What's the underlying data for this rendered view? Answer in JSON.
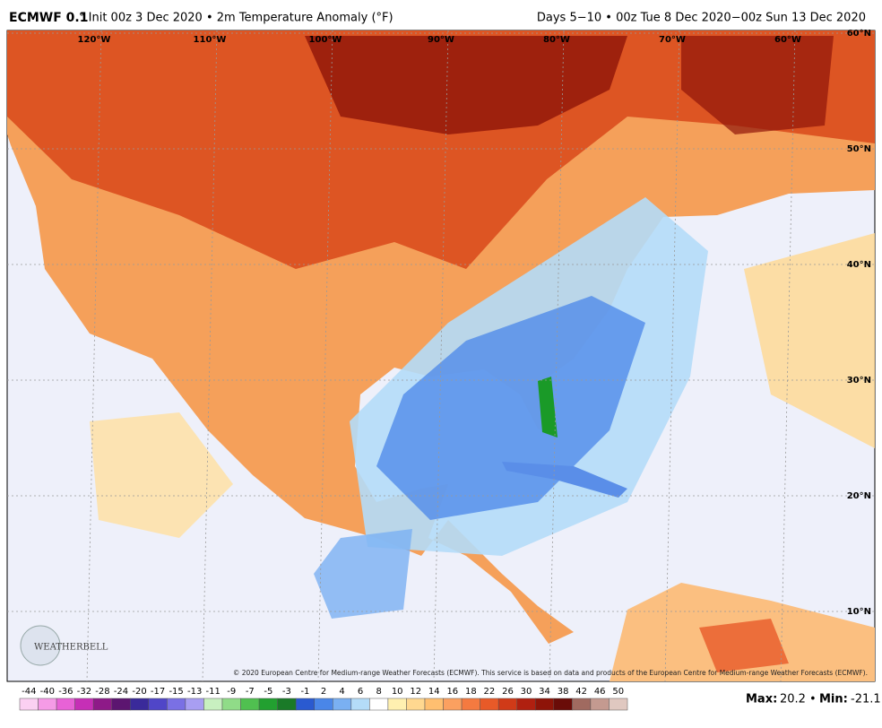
{
  "header": {
    "model": "ECMWF 0.1",
    "title": "° Init 00z 3 Dec 2020 • 2m Temperature Anomaly (°F)",
    "valid": "Days 5−10 • 00z Tue 8 Dec 2020−00z Sun 13 Dec 2020"
  },
  "map": {
    "lon_labels": [
      "120°W",
      "110°W",
      "100°W",
      "90°W",
      "80°W",
      "70°W",
      "60°W"
    ],
    "lat_labels": [
      "60°N",
      "50°N",
      "40°N",
      "30°N",
      "20°N",
      "10°N"
    ],
    "copyright": "© 2020 European Centre for Medium-range Weather Forecasts (ECMWF). This service is based on data and products of the European Centre for Medium-range Weather Forecasts (ECMWF).",
    "logo": "WEATHERBELL"
  },
  "colorbar": {
    "labels": [
      -44,
      -40,
      -36,
      -32,
      -28,
      -24,
      -20,
      -17,
      -15,
      -13,
      -11,
      -9,
      -7,
      -5,
      -3,
      -1,
      2,
      4,
      6,
      8,
      10,
      12,
      14,
      16,
      18,
      22,
      26,
      30,
      34,
      38,
      42,
      46,
      50
    ],
    "colors": [
      "#fbd0f2",
      "#f59be6",
      "#e862d6",
      "#c62fb6",
      "#8e1a88",
      "#5c1570",
      "#3a2a9a",
      "#5046c8",
      "#7a70e4",
      "#a89ef2",
      "#c8f0c0",
      "#90dc88",
      "#50c050",
      "#22a030",
      "#1a7a28",
      "#2a5ad0",
      "#4a86e8",
      "#7ab0f2",
      "#b4dcf8",
      "#ffffff",
      "#fff0b0",
      "#ffd890",
      "#ffbf70",
      "#fba060",
      "#f47a40",
      "#e85a28",
      "#d03a18",
      "#b02010",
      "#8e1408",
      "#6a0c08",
      "#a06a60",
      "#c49a90",
      "#e0c8c0"
    ]
  },
  "stats": {
    "max_label": "Max:",
    "max": 20.2,
    "separator": "•",
    "min_label": "Min:",
    "min": -21.1
  }
}
